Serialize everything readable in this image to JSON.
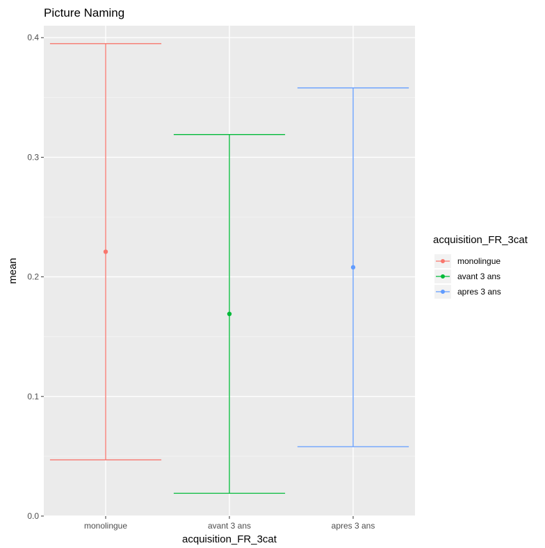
{
  "chart_data": {
    "type": "errorbar",
    "title": "Picture Naming",
    "xlabel": "acquisition_FR_3cat",
    "ylabel": "mean",
    "categories": [
      "monolingue",
      "avant 3 ans",
      "apres 3 ans"
    ],
    "ylim": [
      0,
      0.41
    ],
    "yticks": [
      0.0,
      0.1,
      0.2,
      0.3,
      0.4
    ],
    "ytick_labels": [
      "0.0",
      "0.1",
      "0.2",
      "0.3",
      "0.4"
    ],
    "grid": true,
    "legend": {
      "title": "acquisition_FR_3cat",
      "placement": "right"
    },
    "series": [
      {
        "name": "monolingue",
        "color": "#F8766D",
        "mean": 0.221,
        "lower": 0.047,
        "upper": 0.395
      },
      {
        "name": "avant 3 ans",
        "color": "#00BA38",
        "mean": 0.169,
        "lower": 0.019,
        "upper": 0.319
      },
      {
        "name": "apres 3 ans",
        "color": "#619CFF",
        "mean": 0.208,
        "lower": 0.058,
        "upper": 0.358
      }
    ]
  }
}
